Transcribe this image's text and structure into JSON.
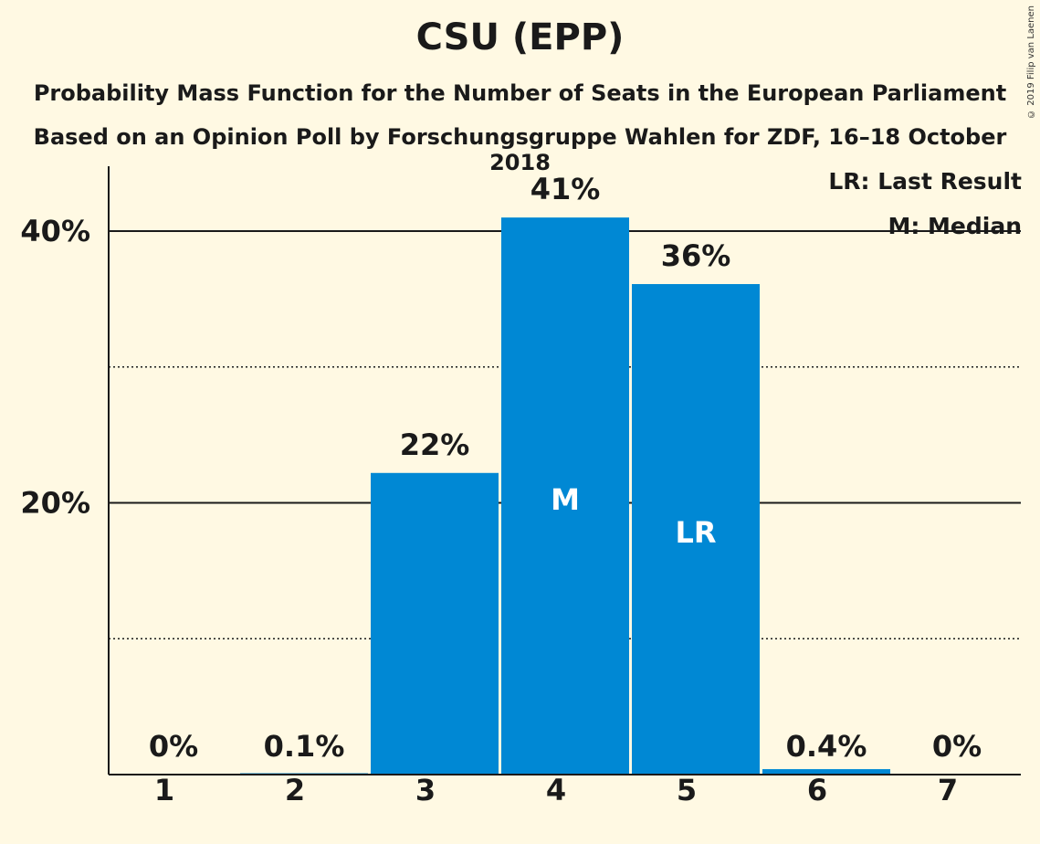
{
  "chart_data": {
    "type": "bar",
    "title": "CSU (EPP)",
    "subtitle": "Probability Mass Function for the Number of Seats in the European Parliament",
    "subtitle2": "Based on an Opinion Poll by Forschungsgruppe Wahlen for ZDF, 16–18 October 2018",
    "copyright": "© 2019 Filip van Laenen",
    "legend": {
      "lr": "LR: Last Result",
      "m": "M: Median",
      "placement": "top-right"
    },
    "categories": [
      "1",
      "2",
      "3",
      "4",
      "5",
      "6",
      "7"
    ],
    "values": [
      0,
      0.1,
      22.2,
      41,
      36.1,
      0.4,
      0
    ],
    "value_labels": [
      "0%",
      "0.1%",
      "22%",
      "41%",
      "36%",
      "0.4%",
      "0%"
    ],
    "bar_markers": [
      "",
      "",
      "",
      "M",
      "LR",
      "",
      ""
    ],
    "y_ticks": [
      {
        "value": 20,
        "label": "20%"
      },
      {
        "value": 40,
        "label": "40%"
      }
    ],
    "minor_gridlines": [
      10,
      30
    ],
    "ylim": [
      0,
      45
    ],
    "bar_color": "#0088D4",
    "background_color": "#FFF9E3"
  }
}
